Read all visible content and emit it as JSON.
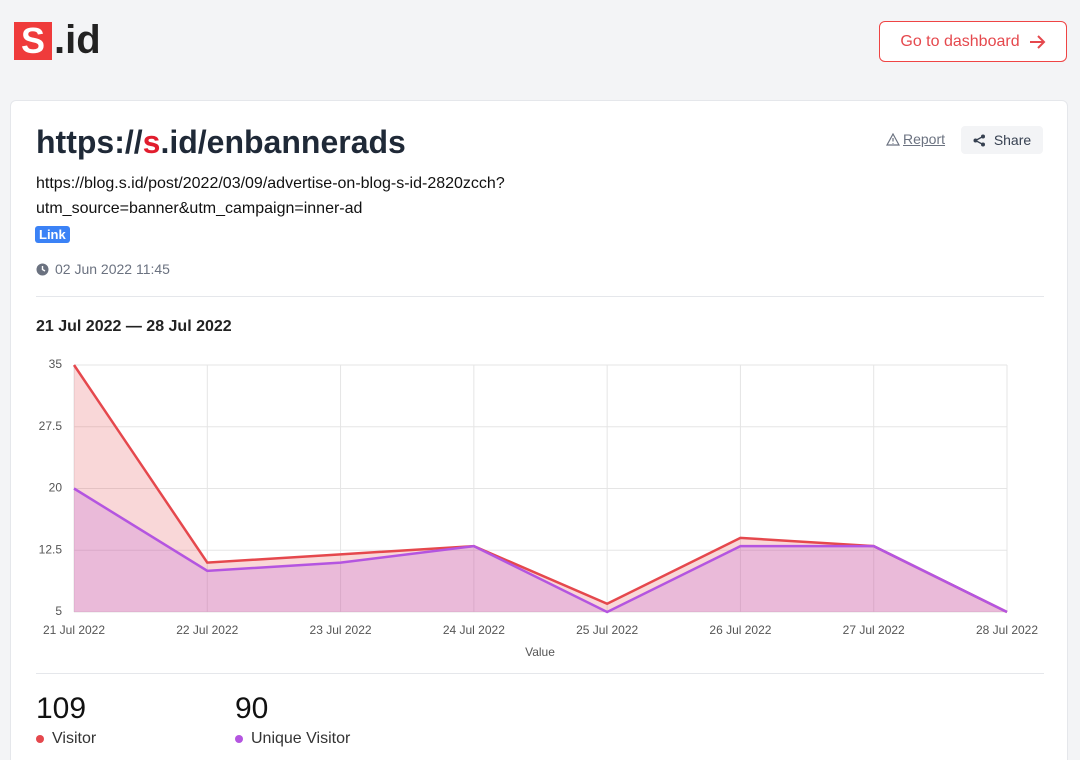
{
  "header": {
    "logo": {
      "mark": "S",
      "text": ".id"
    },
    "button": "Go to dashboard"
  },
  "link": {
    "title": {
      "prefix": "https://",
      "highlight": "s",
      "suffix": ".id/enbannerads"
    },
    "destination": [
      "https://blog.s.id/post/2022/03/09/advertise-on-blog-s-id-2820zcch?",
      "utm_source=banner&utm_campaign=inner-ad"
    ],
    "badge": "Link",
    "created": "02 Jun 2022 11:45",
    "report": "Report",
    "share": "Share"
  },
  "range": "21 Jul 2022 — 28 Jul 2022",
  "chart_data": {
    "type": "line",
    "x_label": "Value",
    "categories": [
      "21 Jul 2022",
      "22 Jul 2022",
      "23 Jul 2022",
      "24 Jul 2022",
      "25 Jul 2022",
      "26 Jul 2022",
      "27 Jul 2022",
      "28 Jul 2022"
    ],
    "series": [
      {
        "name": "Visitor",
        "color": "#e5484d",
        "values": [
          35,
          11,
          12,
          13,
          6,
          14,
          13,
          5
        ]
      },
      {
        "name": "Unique Visitor",
        "color": "#b455e0",
        "values": [
          20,
          10,
          11,
          13,
          5,
          13,
          13,
          5
        ]
      }
    ],
    "ylim": [
      5,
      35
    ],
    "yticks": [
      5,
      12.5,
      20,
      27.5,
      35
    ],
    "grid": true,
    "area": true
  },
  "stats": [
    {
      "value": 109,
      "label": "Visitor"
    },
    {
      "value": 90,
      "label": "Unique Visitor"
    }
  ]
}
